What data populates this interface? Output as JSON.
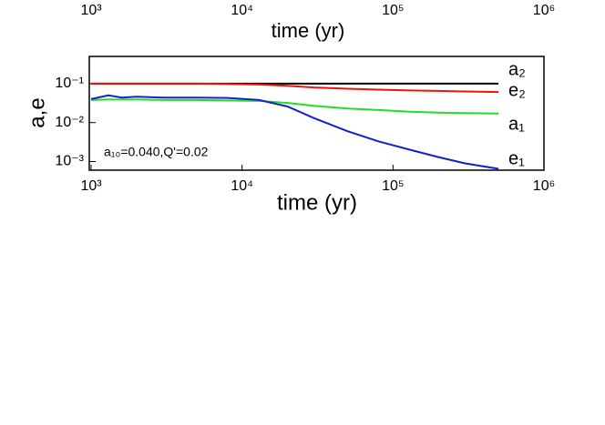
{
  "chart_data": [
    {
      "type": "line",
      "xlabel": "time (yr)",
      "xscale": "log",
      "xlim": [
        1000,
        1000000
      ],
      "xticks": [
        {
          "value": 1000,
          "label": "10³"
        },
        {
          "value": 10000,
          "label": "10⁴"
        },
        {
          "value": 100000,
          "label": "10⁵"
        },
        {
          "value": 1000000,
          "label": "10⁶"
        }
      ]
    },
    {
      "type": "line",
      "xlabel": "time (yr)",
      "ylabel": "a,e",
      "annotation": "a₁₀=0.040,Q'=0.02",
      "xscale": "log",
      "yscale": "log",
      "xlim": [
        1000,
        1000000
      ],
      "ylim": [
        0.0006,
        0.5
      ],
      "xticks": [
        {
          "value": 1000,
          "label": "10³"
        },
        {
          "value": 10000,
          "label": "10⁴"
        },
        {
          "value": 100000,
          "label": "10⁵"
        },
        {
          "value": 1000000,
          "label": "10⁶"
        }
      ],
      "yticks": [
        {
          "value": 0.001,
          "label": "10⁻³"
        },
        {
          "value": 0.01,
          "label": "10⁻²"
        },
        {
          "value": 0.1,
          "label": "10⁻¹"
        }
      ],
      "x": [
        1000,
        1300,
        1600,
        2000,
        3000,
        5000,
        8000,
        13000,
        20000,
        30000,
        50000,
        80000,
        130000,
        200000,
        300000,
        500000
      ],
      "series": [
        {
          "name": "a₂",
          "color": "#000000",
          "values": [
            0.1,
            0.1,
            0.1,
            0.1,
            0.1,
            0.1,
            0.1,
            0.1,
            0.1,
            0.1,
            0.1,
            0.1,
            0.1,
            0.1,
            0.1,
            0.1
          ]
        },
        {
          "name": "e₂",
          "color": "#e8160c",
          "values": [
            0.1,
            0.1,
            0.1,
            0.1,
            0.1,
            0.1,
            0.098,
            0.095,
            0.088,
            0.08,
            0.074,
            0.07,
            0.067,
            0.065,
            0.063,
            0.061
          ]
        },
        {
          "name": "a₁",
          "color": "#22dd22",
          "values": [
            0.038,
            0.039,
            0.039,
            0.039,
            0.038,
            0.038,
            0.037,
            0.036,
            0.032,
            0.027,
            0.023,
            0.021,
            0.019,
            0.018,
            0.0175,
            0.017
          ]
        },
        {
          "name": "e₁",
          "color": "#1122cc",
          "values": [
            0.04,
            0.05,
            0.044,
            0.046,
            0.044,
            0.044,
            0.043,
            0.038,
            0.026,
            0.013,
            0.006,
            0.0033,
            0.002,
            0.0013,
            0.0009,
            0.00065
          ]
        }
      ]
    }
  ]
}
